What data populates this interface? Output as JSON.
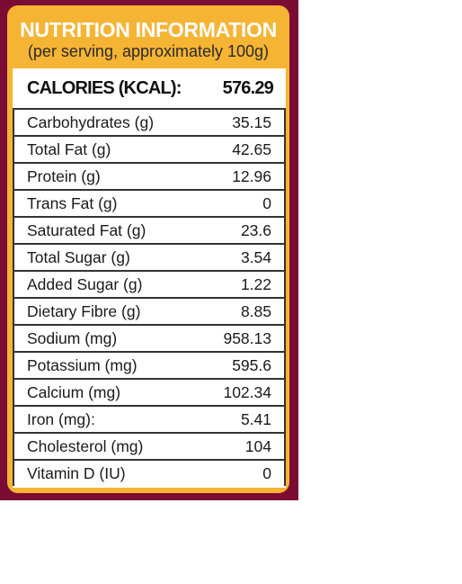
{
  "header": {
    "title": "NUTRITION INFORMATION",
    "subtitle": "(per serving, approximately 100g)"
  },
  "calories": {
    "label": "CALORIES (KCAL):",
    "value": 576.29
  },
  "rows": [
    [
      "Carbohydrates (g)",
      35.15
    ],
    [
      "Total Fat (g)",
      42.65
    ],
    [
      "Protein (g)",
      12.96
    ],
    [
      "Trans Fat (g)",
      0
    ],
    [
      "Saturated Fat (g)",
      23.6
    ],
    [
      "Total Sugar (g)",
      3.54
    ],
    [
      "Added Sugar (g)",
      1.22
    ],
    [
      "Dietary Fibre (g)",
      8.85
    ],
    [
      "Sodium (mg)",
      958.13
    ],
    [
      "Potassium (mg)",
      595.6
    ],
    [
      "Calcium (mg)",
      102.34
    ],
    [
      "Iron (mg):",
      5.41
    ],
    [
      "Cholesterol (mg)",
      104
    ],
    [
      "Vitamin D (IU)",
      0
    ]
  ]
}
